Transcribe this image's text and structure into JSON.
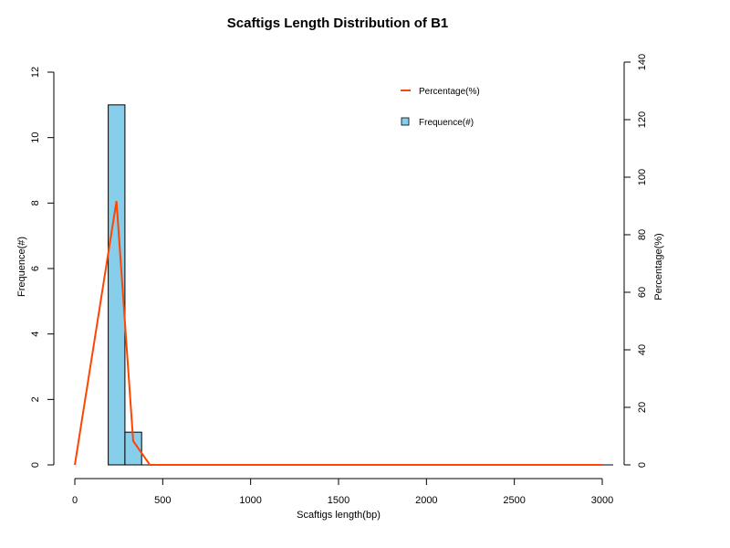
{
  "chart_data": {
    "type": "bar",
    "title": "Scaftigs Length Distribution of B1",
    "xlabel": "Scaftigs length(bp)",
    "ylabel": "Frequence(#)",
    "y2label": "Percentage(%)",
    "xlim": [
      0,
      3000
    ],
    "ylim": [
      0,
      12
    ],
    "y2lim": [
      0,
      140
    ],
    "x_ticks": [
      "0",
      "500",
      "1000",
      "1500",
      "2000",
      "2500",
      "3000"
    ],
    "y_ticks": [
      "0",
      "2",
      "4",
      "6",
      "8",
      "10",
      "12"
    ],
    "y2_ticks": [
      "0",
      "20",
      "40",
      "60",
      "80",
      "100",
      "120",
      "140"
    ],
    "grid": false,
    "legend_position": "top-right",
    "bar_color": "#87CEEB",
    "line_color": "#FF4500",
    "bars": [
      {
        "x0": 190,
        "x1": 285,
        "frequency": 11
      },
      {
        "x0": 285,
        "x1": 380,
        "frequency": 1
      }
    ],
    "series": [
      {
        "name": "Percentage(%)",
        "type": "line",
        "axis": "right",
        "x": [
          0,
          237,
          332,
          427,
          3000
        ],
        "values": [
          0,
          91.7,
          8.3,
          0,
          0
        ]
      },
      {
        "name": "Frequence(#)",
        "type": "bar",
        "axis": "left",
        "values": [
          11,
          1
        ]
      }
    ]
  }
}
